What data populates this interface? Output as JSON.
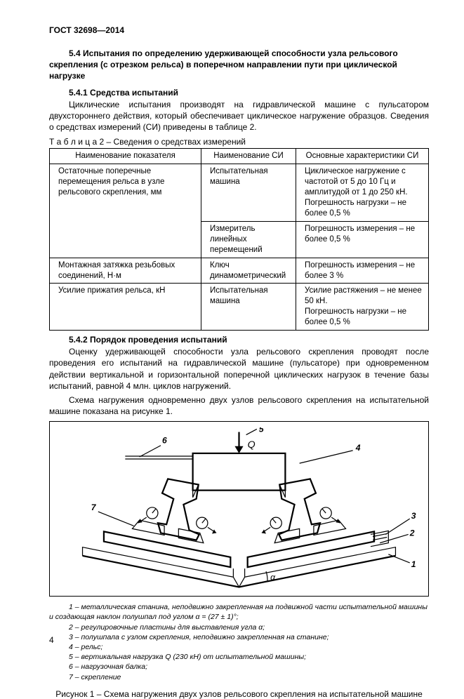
{
  "header": {
    "doc_code": "ГОСТ 32698—2014"
  },
  "section": {
    "title": "5.4 Испытания по определению удерживающей способности узла рельсового скрепления (с отрезком рельса) в поперечном направлении пути при циклической нагрузке",
    "sub1_title": "5.4.1 Средства испытаний",
    "sub1_para": "Циклические испытания производят на гидравлической машине с пульсатором   двухстороннего действия, который обеспечивает циклическое нагружение образцов.   Сведения о средствах измерений (СИ)   приведены в таблице 2.",
    "table_caption_prefix": "Т а б л и ц а   2 –  ",
    "table_caption_text": "Сведения о средствах измерений",
    "sub2_title": "5.4.2 Порядок проведения испытаний",
    "sub2_para1": "Оценку удерживающей способности узла рельсового скрепления проводят после проведения его испытаний на гидравлической машине (пульсаторе) при одновременном действии вертикальной и горизонтальной поперечной циклических нагрузок в течение базы испытаний,  равной 4 млн. циклов нагружений.",
    "sub2_para2": "Схема нагружения одновременно  двух  узлов  рельсового  скрепления  на испытательной  машине показана на рисунке 1."
  },
  "table": {
    "headers": [
      "Наименование показателя",
      "Наименование СИ",
      "Основные характеристики  СИ"
    ],
    "rows": [
      {
        "c1": "   Остаточные   поперечные  перемещения  рельса  в  узле  рельсового  скрепления, мм",
        "c2": "   Испытательная машина",
        "c3": "   Циклическое нагружение  с частотой от 5   до 10 Гц и амплитудой от 1  до 250 кН.\n   Погрешность нагрузки – не более 0,5 %"
      },
      {
        "c1": "",
        "c2": "   Измеритель линейных перемещений",
        "c3": "   Погрешность измерения  – не более 0,5 %"
      },
      {
        "c1": "    Монтажная  затяжка резьбовых соединений, Н·м",
        "c2": "   Ключ динамометрический",
        "c3": "   Погрешность измерения – не более 3 %"
      },
      {
        "c1": "    Усилие прижатия рельса, кН",
        "c2": "   Испытательная машина",
        "c3": "   Усилие растяжения  – не менее 50 кН.\n   Погрешность нагрузки –  не более 0,5 %"
      }
    ]
  },
  "figure": {
    "labels": {
      "Q": "Q",
      "alpha": "α",
      "n1": "1",
      "n2": "2",
      "n3": "3",
      "n4": "4",
      "n5": "5",
      "n6": "6",
      "n7": "7"
    },
    "stroke": "#000000",
    "stroke_width": 1.2,
    "thick_width": 2.2
  },
  "legend": {
    "l1": "1 – металлическая станина, неподвижно закрепленная на подвижной части испытательной машины и создающая  наклон полушпал под углом α = (27 ± 1)°;",
    "l2": "2 – регулировочные пластины для выставления угла  α;",
    "l3": "3 –  полушпала с узлом скрепления, неподвижно закрепленная на станине;",
    "l4": "4 – рельс;",
    "l5": "5 – вертикальная нагрузка Q (230 кН) от испытательной машины;",
    "l6": "6 – нагрузочная балка;",
    "l7": "7 – скрепление"
  },
  "figure_caption": "Рисунок 1 – Схема нагружения двух узлов рельсового скрепления на испытательной машине",
  "page_number": "4"
}
